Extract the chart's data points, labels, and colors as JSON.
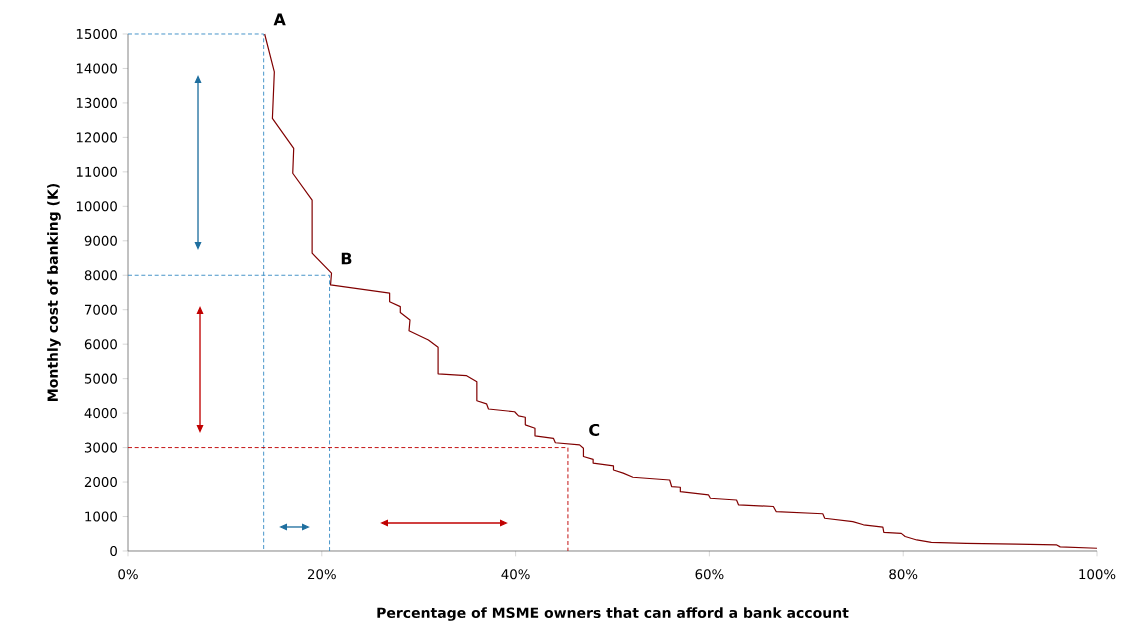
{
  "chart_data": {
    "type": "line",
    "xlabel": "Percentage of MSME owners that can afford a bank account",
    "ylabel": "Monthly cost of banking (K)",
    "xlim": [
      0,
      100
    ],
    "ylim": [
      0,
      15000
    ],
    "xticks": [
      {
        "value": 0,
        "label": "0%"
      },
      {
        "value": 20,
        "label": "20%"
      },
      {
        "value": 40,
        "label": "40%"
      },
      {
        "value": 60,
        "label": "60%"
      },
      {
        "value": 80,
        "label": "80%"
      },
      {
        "value": 100,
        "label": "100%"
      }
    ],
    "yticks": [
      0,
      1000,
      2000,
      3000,
      4000,
      5000,
      6000,
      7000,
      8000,
      9000,
      10000,
      11000,
      12000,
      13000,
      14000,
      15000
    ],
    "series": [
      {
        "color": "#800000",
        "line_style": "solid",
        "x": [
          14.1,
          15.1,
          14.9,
          17.1,
          17.0,
          19.0,
          19.0,
          21.0,
          20.9,
          27.0,
          27.0,
          28.1,
          28.1,
          29.1,
          29.0,
          31.0,
          32.0,
          32.0,
          34.9,
          36.0,
          36.0,
          37.0,
          37.2,
          39.9,
          40.3,
          41.0,
          41.0,
          42.0,
          42.0,
          43.9,
          44.1,
          46.6,
          47.0,
          47.0,
          48.0,
          48.0,
          50.1,
          50.1,
          51.1,
          52.1,
          55.9,
          56.1,
          57.0,
          57.0,
          59.9,
          60.1,
          62.8,
          63.0,
          66.6,
          66.9,
          71.7,
          71.9,
          74.8,
          75.9,
          77.9,
          78.0,
          79.8,
          80.2,
          81.4,
          82.9,
          86.5,
          91.7,
          95.8,
          96.2,
          100
        ],
        "values": [
          15000,
          13900,
          12550,
          11680,
          10960,
          10180,
          8640,
          8060,
          7720,
          7480,
          7230,
          7090,
          6920,
          6700,
          6390,
          6120,
          5910,
          5140,
          5090,
          4910,
          4360,
          4270,
          4120,
          4040,
          3920,
          3880,
          3660,
          3560,
          3340,
          3270,
          3140,
          3080,
          2980,
          2740,
          2660,
          2550,
          2470,
          2350,
          2260,
          2140,
          2060,
          1870,
          1850,
          1720,
          1630,
          1530,
          1480,
          1340,
          1290,
          1140,
          1080,
          950,
          850,
          760,
          690,
          540,
          510,
          420,
          320,
          250,
          220,
          200,
          180,
          120,
          80
        ]
      },
      {
        "color": "#3a8dc5",
        "line_style": "dashed",
        "x": [
          0,
          14,
          14
        ],
        "values": [
          15000,
          15000,
          0
        ]
      },
      {
        "color": "#3a8dc5",
        "line_style": "dashed",
        "x": [
          0,
          20.8,
          20.8
        ],
        "values": [
          8000,
          8000,
          0
        ]
      },
      {
        "color": "#c00000",
        "line_style": "dashed",
        "x": [
          0,
          45.4,
          45.4
        ],
        "values": [
          3000,
          3000,
          0
        ]
      }
    ],
    "annotations": [
      {
        "text": "A",
        "x": 14.1,
        "y": 15000
      },
      {
        "text": "B",
        "x": 21.0,
        "y": 8060
      },
      {
        "text": "C",
        "x": 46.6,
        "y": 3080
      }
    ]
  }
}
